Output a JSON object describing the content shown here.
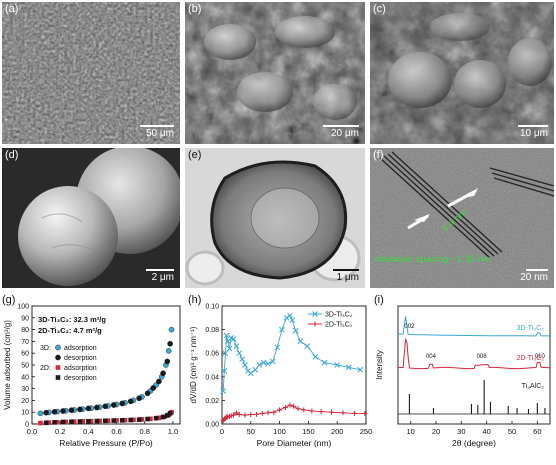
{
  "panels": {
    "a": {
      "label": "(a)",
      "scale": "50 μm"
    },
    "b": {
      "label": "(b)",
      "scale": "20 μm"
    },
    "c": {
      "label": "(c)",
      "scale": "10 μm"
    },
    "d": {
      "label": "(d)",
      "scale": "2 μm"
    },
    "e": {
      "label": "(e)",
      "scale": "1 μm"
    },
    "f": {
      "label": "(f)",
      "scale": "20 nm",
      "width_label": "5.4 nm",
      "spacing_label": "interlayer spacing ~1.35 nm"
    }
  },
  "colors": {
    "cyan": "#3aa8d8",
    "red": "#d8263a",
    "black": "#1a1a1a",
    "green": "#3ddc3d"
  },
  "chart_data": [
    {
      "panel_label": "(g)",
      "type": "scatter",
      "xlabel": "Relative Pressure (P/Po)",
      "ylabel": "Volume adsorbed (cm³/g)",
      "xlim": [
        0,
        1.05
      ],
      "ylim": [
        0,
        100
      ],
      "xticks": [
        "0.0",
        "0.2",
        "0.4",
        "0.6",
        "0.8",
        "1.0"
      ],
      "yticks": [
        "0",
        "10",
        "20",
        "30",
        "40",
        "50",
        "60",
        "70",
        "80",
        "90",
        "100"
      ],
      "annotations": [
        "3D-Ti₃C₂: 32.3 m²/g",
        "2D-Ti₃C₂:   4.7 m²/g"
      ],
      "legend": {
        "group_3d": "3D:",
        "group_2d": "2D:",
        "adsorption": "adsorption",
        "desorption": "desorption"
      },
      "series": [
        {
          "name": "3D adsorption",
          "color": "#3aa8d8",
          "marker": "circle",
          "x": [
            0.06,
            0.12,
            0.18,
            0.24,
            0.3,
            0.36,
            0.42,
            0.48,
            0.54,
            0.6,
            0.66,
            0.72,
            0.78,
            0.84,
            0.88,
            0.92,
            0.95,
            0.97,
            0.99
          ],
          "y": [
            9,
            9.8,
            10.5,
            11.2,
            11.9,
            12.6,
            13.4,
            14.3,
            15.3,
            16.5,
            18,
            20,
            23,
            28,
            33,
            40,
            50,
            62,
            80
          ]
        },
        {
          "name": "3D desorption",
          "color": "#1a1a1a",
          "marker": "circle",
          "x": [
            0.1,
            0.16,
            0.22,
            0.28,
            0.34,
            0.4,
            0.46,
            0.52,
            0.58,
            0.64,
            0.7,
            0.76,
            0.82,
            0.86,
            0.9,
            0.93,
            0.96,
            0.98
          ],
          "y": [
            9.6,
            10.3,
            11,
            11.7,
            12.4,
            13.2,
            14,
            15,
            16.1,
            17.4,
            19.2,
            21.8,
            26,
            30.5,
            36,
            43,
            53,
            68
          ]
        },
        {
          "name": "2D adsorption",
          "color": "#d8263a",
          "marker": "square",
          "x": [
            0.06,
            0.12,
            0.18,
            0.24,
            0.3,
            0.36,
            0.42,
            0.48,
            0.54,
            0.6,
            0.66,
            0.72,
            0.78,
            0.84,
            0.9,
            0.94,
            0.97,
            0.99
          ],
          "y": [
            0.8,
            1.2,
            1.5,
            1.8,
            2,
            2.2,
            2.4,
            2.6,
            2.8,
            3,
            3.2,
            3.5,
            3.9,
            4.4,
            5.2,
            6.2,
            7.8,
            10
          ]
        },
        {
          "name": "2D desorption",
          "color": "#1a1a1a",
          "marker": "square",
          "x": [
            0.1,
            0.16,
            0.22,
            0.28,
            0.34,
            0.4,
            0.46,
            0.52,
            0.58,
            0.64,
            0.7,
            0.76,
            0.82,
            0.88,
            0.93,
            0.96,
            0.98
          ],
          "y": [
            1,
            1.4,
            1.7,
            1.9,
            2.1,
            2.3,
            2.5,
            2.7,
            2.9,
            3.1,
            3.4,
            3.7,
            4.2,
            4.9,
            5.9,
            7.2,
            9
          ]
        }
      ]
    },
    {
      "panel_label": "(h)",
      "type": "line",
      "xlabel": "Pore Diameter (nm)",
      "ylabel": "dV/dD (cm³ g⁻¹ nm⁻¹)",
      "xlim": [
        0,
        250
      ],
      "ylim": [
        0,
        0.1
      ],
      "xticks": [
        "0",
        "50",
        "100",
        "150",
        "200",
        "250"
      ],
      "yticks": [
        "0.00",
        "0.02",
        "0.04",
        "0.06",
        "0.08",
        "0.10"
      ],
      "series": [
        {
          "name": "3D-Ti₃C₂",
          "color": "#3aa8d8",
          "marker": "x",
          "x": [
            2,
            4,
            6,
            8,
            10,
            13,
            16,
            20,
            25,
            30,
            35,
            40,
            45,
            50,
            58,
            65,
            72,
            80,
            88,
            96,
            104,
            112,
            118,
            122,
            128,
            136,
            148,
            162,
            178,
            200,
            220,
            240
          ],
          "y": [
            0.028,
            0.045,
            0.06,
            0.075,
            0.07,
            0.064,
            0.073,
            0.072,
            0.066,
            0.06,
            0.055,
            0.05,
            0.045,
            0.043,
            0.046,
            0.05,
            0.052,
            0.051,
            0.053,
            0.065,
            0.08,
            0.09,
            0.092,
            0.088,
            0.079,
            0.07,
            0.066,
            0.057,
            0.052,
            0.05,
            0.048,
            0.046
          ]
        },
        {
          "name": "2D-Ti₃C₂",
          "color": "#d8263a",
          "marker": "plus",
          "x": [
            2,
            4,
            6,
            8,
            10,
            13,
            16,
            20,
            25,
            30,
            40,
            50,
            60,
            70,
            80,
            90,
            100,
            110,
            118,
            124,
            132,
            142,
            156,
            172,
            190,
            210,
            230,
            248
          ],
          "y": [
            0.003,
            0.004,
            0.005,
            0.006,
            0.006,
            0.0065,
            0.007,
            0.0075,
            0.0095,
            0.008,
            0.0075,
            0.008,
            0.0082,
            0.009,
            0.0095,
            0.01,
            0.012,
            0.014,
            0.016,
            0.015,
            0.013,
            0.012,
            0.011,
            0.0105,
            0.01,
            0.0095,
            0.009,
            0.009
          ]
        }
      ]
    },
    {
      "panel_label": "(i)",
      "type": "line",
      "xlabel": "2θ (degree)",
      "ylabel": "Intensity",
      "xlim": [
        5,
        65
      ],
      "xticks": [
        "10",
        "20",
        "30",
        "40",
        "50",
        "60"
      ],
      "peak_labels": [
        "002",
        "004",
        "008",
        "010"
      ],
      "series": [
        {
          "name": "3D-Ti₃C₂",
          "color": "#3aa8d8"
        },
        {
          "name": "2D-Ti₃C₂",
          "color": "#d8263a"
        },
        {
          "name": "Ti₃AlC₂",
          "color": "#1a1a1a"
        }
      ]
    }
  ]
}
